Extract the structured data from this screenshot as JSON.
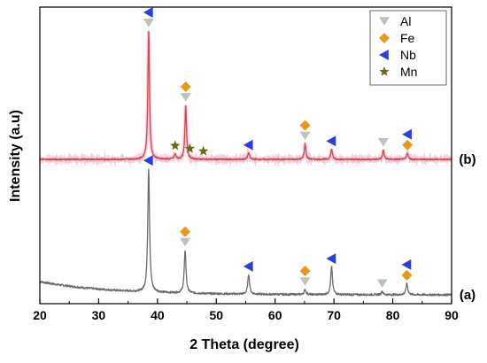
{
  "chart_data": {
    "type": "line",
    "xlabel": "2 Theta (degree)",
    "ylabel": "Intensity (a.u)",
    "xlim": [
      20,
      90
    ],
    "x_ticks": [
      20,
      30,
      40,
      50,
      60,
      70,
      80,
      90
    ],
    "grid": false,
    "legend_position": "top-right",
    "series": [
      {
        "name": "(a)",
        "color": "#6b6b6b",
        "baseline": 0.08,
        "peaks": [
          {
            "x": 38.5,
            "height": 0.75,
            "width": 0.18
          },
          {
            "x": 44.7,
            "height": 0.26,
            "width": 0.18
          },
          {
            "x": 55.5,
            "height": 0.12,
            "width": 0.18
          },
          {
            "x": 65.1,
            "height": 0.03,
            "width": 0.18
          },
          {
            "x": 69.6,
            "height": 0.17,
            "width": 0.18
          },
          {
            "x": 78.2,
            "height": 0.02,
            "width": 0.18
          },
          {
            "x": 82.4,
            "height": 0.07,
            "width": 0.18
          }
        ]
      },
      {
        "name": "(b)",
        "color": "#cc4b4b",
        "baseline": 0.0,
        "peaks": [
          {
            "x": 38.5,
            "height": 1.0,
            "width": 0.16
          },
          {
            "x": 43.0,
            "height": 0.04,
            "width": 0.18
          },
          {
            "x": 44.8,
            "height": 0.42,
            "width": 0.16
          },
          {
            "x": 55.5,
            "height": 0.05,
            "width": 0.18
          },
          {
            "x": 65.1,
            "height": 0.12,
            "width": 0.16
          },
          {
            "x": 69.6,
            "height": 0.08,
            "width": 0.16
          },
          {
            "x": 78.4,
            "height": 0.07,
            "width": 0.16
          },
          {
            "x": 82.5,
            "height": 0.05,
            "width": 0.16
          }
        ]
      }
    ],
    "phase_legend": [
      {
        "label": "Al",
        "marker": "triangle-down",
        "color": "#c0c0c0"
      },
      {
        "label": "Fe",
        "marker": "diamond",
        "color": "#e69a1a"
      },
      {
        "label": "Nb",
        "marker": "triangle-left",
        "color": "#2a3fe0"
      },
      {
        "label": "Mn",
        "marker": "star",
        "color": "#6e6a18"
      }
    ],
    "annotations": [
      {
        "series": "(b)",
        "x": 38.5,
        "markers": [
          "Nb",
          "Al"
        ]
      },
      {
        "series": "(b)",
        "x": 43.0,
        "markers": [
          "Mn"
        ]
      },
      {
        "series": "(b)",
        "x": 44.8,
        "markers": [
          "Fe",
          "Al"
        ]
      },
      {
        "series": "(b)",
        "x": 45.5,
        "markers": [
          "Mn"
        ]
      },
      {
        "series": "(b)",
        "x": 47.8,
        "markers": [
          "Mn"
        ]
      },
      {
        "series": "(b)",
        "x": 55.5,
        "markers": [
          "Nb"
        ]
      },
      {
        "series": "(b)",
        "x": 65.1,
        "markers": [
          "Fe",
          "Al"
        ]
      },
      {
        "series": "(b)",
        "x": 69.6,
        "markers": [
          "Nb"
        ]
      },
      {
        "series": "(b)",
        "x": 78.4,
        "markers": [
          "Al"
        ]
      },
      {
        "series": "(b)",
        "x": 82.5,
        "markers": [
          "Nb",
          "Fe"
        ]
      },
      {
        "series": "(a)",
        "x": 38.5,
        "markers": [
          "Nb"
        ]
      },
      {
        "series": "(a)",
        "x": 44.7,
        "markers": [
          "Fe",
          "Al"
        ]
      },
      {
        "series": "(a)",
        "x": 55.5,
        "markers": [
          "Nb"
        ]
      },
      {
        "series": "(a)",
        "x": 65.1,
        "markers": [
          "Fe",
          "Al"
        ]
      },
      {
        "series": "(a)",
        "x": 69.6,
        "markers": [
          "Nb"
        ]
      },
      {
        "series": "(a)",
        "x": 78.2,
        "markers": [
          "Al"
        ]
      },
      {
        "series": "(a)",
        "x": 82.4,
        "markers": [
          "Nb",
          "Fe"
        ]
      }
    ]
  }
}
